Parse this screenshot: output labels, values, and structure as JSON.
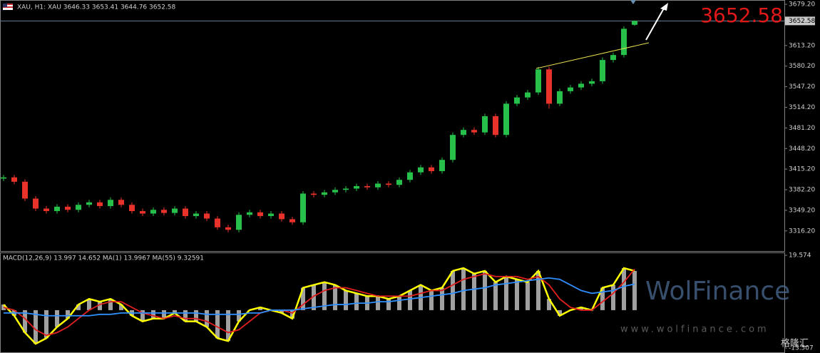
{
  "chart_data": [
    {
      "type": "candlestick",
      "title": "XAU, H1:  XAU  3646.33 3653.41 3644.76 3652.58",
      "open": [
        3400,
        3402,
        3395,
        3368,
        3352,
        3348,
        3355,
        3350,
        3358,
        3362,
        3356,
        3366,
        3358,
        3348,
        3344,
        3350,
        3345,
        3352,
        3340,
        3344,
        3336,
        3322,
        3318,
        3342,
        3346,
        3340,
        3344,
        3335,
        3330,
        3376,
        3374,
        3378,
        3382,
        3384,
        3388,
        3386,
        3392,
        3390,
        3398,
        3410,
        3418,
        3412,
        3430,
        3470,
        3478,
        3474,
        3500,
        3470,
        3520,
        3530,
        3538,
        3575,
        3520,
        3540,
        3546,
        3552,
        3556,
        3590,
        3598,
        3646.33
      ],
      "high": [
        3406,
        3406,
        3399,
        3372,
        3356,
        3359,
        3359,
        3362,
        3366,
        3366,
        3370,
        3370,
        3362,
        3352,
        3354,
        3354,
        3356,
        3356,
        3348,
        3348,
        3340,
        3326,
        3346,
        3350,
        3350,
        3348,
        3348,
        3339,
        3380,
        3380,
        3382,
        3386,
        3388,
        3392,
        3392,
        3396,
        3396,
        3402,
        3414,
        3422,
        3422,
        3434,
        3474,
        3482,
        3482,
        3504,
        3504,
        3524,
        3534,
        3542,
        3579,
        3579,
        3544,
        3550,
        3556,
        3560,
        3594,
        3602,
        3644,
        3653.41
      ],
      "low": [
        3396,
        3391,
        3364,
        3348,
        3344,
        3344,
        3346,
        3346,
        3354,
        3352,
        3352,
        3354,
        3344,
        3340,
        3340,
        3341,
        3341,
        3336,
        3336,
        3332,
        3318,
        3314,
        3314,
        3338,
        3336,
        3336,
        3331,
        3326,
        3326,
        3370,
        3370,
        3374,
        3378,
        3380,
        3382,
        3382,
        3386,
        3386,
        3394,
        3406,
        3408,
        3408,
        3426,
        3466,
        3470,
        3470,
        3466,
        3466,
        3516,
        3526,
        3534,
        3512,
        3516,
        3536,
        3542,
        3548,
        3552,
        3586,
        3594,
        3644.76
      ],
      "close": [
        3402,
        3395,
        3368,
        3352,
        3348,
        3355,
        3350,
        3358,
        3362,
        3356,
        3366,
        3358,
        3348,
        3344,
        3350,
        3345,
        3352,
        3340,
        3344,
        3336,
        3322,
        3318,
        3342,
        3346,
        3340,
        3344,
        3335,
        3330,
        3376,
        3374,
        3378,
        3382,
        3384,
        3388,
        3386,
        3392,
        3390,
        3398,
        3410,
        3418,
        3412,
        3430,
        3470,
        3478,
        3474,
        3500,
        3470,
        3520,
        3530,
        3538,
        3575,
        3520,
        3540,
        3546,
        3552,
        3556,
        3590,
        3598,
        3640,
        3652.58
      ],
      "up_color": "#26c04a",
      "down_color": "#e8322a",
      "ylim": [
        3284,
        3686.1
      ],
      "yticks": [
        {
          "value": 3679.2,
          "label": "3679.20"
        },
        {
          "value": 3613.2,
          "label": "3613.20"
        },
        {
          "value": 3580.2,
          "label": "3580.20"
        },
        {
          "value": 3547.2,
          "label": "3547.20"
        },
        {
          "value": 3514.2,
          "label": "3514.20"
        },
        {
          "value": 3481.2,
          "label": "3481.20"
        },
        {
          "value": 3448.2,
          "label": "3448.20"
        },
        {
          "value": 3415.2,
          "label": "3415.20"
        },
        {
          "value": 3382.2,
          "label": "3382.20"
        },
        {
          "value": 3349.2,
          "label": "3349.20"
        },
        {
          "value": 3316.2,
          "label": "3316.20"
        }
      ],
      "last_price": {
        "value": 3652.58,
        "label": "3652.58"
      }
    },
    {
      "type": "macd",
      "title": "MACD(12,26,9) 13.997 14.652 MA(1) 13.9967 MA(55) 9.32591",
      "ylim": [
        -13.507,
        19.574
      ],
      "yticks": [
        19.574,
        -13.507
      ],
      "series": [
        {
          "color": "#ffff00",
          "bar_color": "#c8c8c8",
          "values": [
            2,
            -2,
            -8,
            -12,
            -10,
            -6,
            -3,
            2,
            4,
            3,
            4,
            2,
            -2,
            -4,
            -3,
            -3,
            -1,
            -4,
            -4,
            -6,
            -10,
            -11,
            -4,
            0,
            1,
            0,
            -1,
            -3,
            8,
            9,
            10,
            9,
            7,
            6,
            5,
            5,
            4,
            5,
            7,
            9,
            7,
            8,
            14,
            15,
            13,
            14,
            10,
            12,
            11,
            10,
            14,
            4,
            -2,
            0,
            1,
            0,
            8,
            9,
            15,
            13.997
          ]
        },
        {
          "color": "#e02020",
          "values": [
            1,
            0,
            -3,
            -7,
            -9,
            -8,
            -6,
            -3,
            0,
            2,
            3,
            3,
            1,
            -1,
            -2,
            -3,
            -2,
            -3,
            -3,
            -4,
            -6,
            -8,
            -7,
            -4,
            -1,
            0,
            0,
            -1,
            2,
            5,
            7,
            8,
            8,
            7,
            6,
            5,
            5,
            5,
            5,
            6,
            7,
            7,
            9,
            11,
            12,
            13,
            12,
            12,
            12,
            11,
            12,
            9,
            4,
            1,
            0,
            0,
            3,
            6,
            10,
            14.652
          ]
        },
        {
          "color": "#2f8fff",
          "values": [
            -1,
            -1,
            -1,
            -1.5,
            -2,
            -2,
            -2,
            -2,
            -2,
            -1.5,
            -1.5,
            -1,
            -1,
            -1,
            -1,
            -1,
            -1,
            -1,
            -1,
            -1.5,
            -1.5,
            -1.5,
            -1.5,
            -1,
            -1,
            0,
            0,
            0,
            0.5,
            1,
            1.5,
            2,
            2,
            2.5,
            2.5,
            3,
            3,
            3.5,
            4,
            4.5,
            5,
            5.5,
            6,
            7,
            7.5,
            8,
            9,
            9.5,
            10,
            10.5,
            11,
            11.5,
            11,
            9,
            7,
            6,
            6.5,
            7,
            8.5,
            9.32591
          ]
        }
      ]
    }
  ],
  "watermark": {
    "brand": "WolFinance",
    "url": "www.wolfinance.com",
    "source": "格隆汇"
  }
}
